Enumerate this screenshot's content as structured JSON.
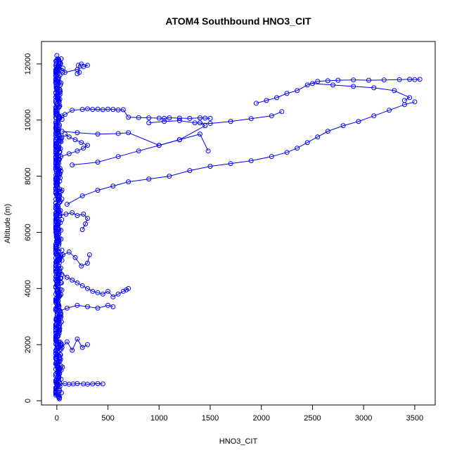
{
  "chart_data": {
    "type": "scatter",
    "title": "ATOM4 Southbound HNO3_CIT",
    "xlabel": "HNO3_CIT",
    "ylabel": "Altitude (m)",
    "xlim": [
      -150,
      3700
    ],
    "ylim": [
      -150,
      12800
    ],
    "x_ticks": [
      0,
      500,
      1000,
      1500,
      2000,
      2500,
      3000,
      3500
    ],
    "y_ticks": [
      0,
      2000,
      4000,
      6000,
      8000,
      10000,
      12000
    ],
    "grid": false,
    "legend": "none",
    "color": "#0000ff",
    "series": [
      {
        "x": [
          0,
          10,
          30,
          60,
          80,
          200,
          260,
          300,
          240,
          210,
          220,
          200
        ],
        "y": [
          12300,
          11900,
          11800,
          11850,
          11700,
          11800,
          11900,
          11950,
          12000,
          11950,
          11700,
          11650
        ]
      },
      {
        "x": [
          30,
          80,
          150,
          250,
          300,
          350,
          400,
          450,
          500,
          550,
          600,
          650,
          700,
          800,
          900,
          1000,
          1050,
          1100,
          1200,
          1300,
          1400,
          1450,
          1500
        ],
        "y": [
          10100,
          10200,
          10350,
          10380,
          10400,
          10380,
          10390,
          10370,
          10390,
          10380,
          10360,
          10370,
          10100,
          10090,
          10080,
          10070,
          10060,
          10080,
          10070,
          10060,
          10080,
          10070,
          10060
        ]
      },
      {
        "x": [
          50,
          200,
          400,
          600,
          700,
          1000,
          1200,
          1450,
          1400
        ],
        "y": [
          9600,
          9550,
          9500,
          9520,
          9550,
          9100,
          9300,
          9800,
          9900
        ]
      },
      {
        "x": [
          150,
          400,
          600,
          800,
          1000,
          1200,
          1400,
          1480
        ],
        "y": [
          8400,
          8500,
          8700,
          8900,
          9100,
          9300,
          9500,
          8900
        ]
      },
      {
        "x": [
          100,
          250,
          400,
          550,
          700,
          900,
          1100,
          1300,
          1500,
          1700,
          1900,
          2100,
          2250,
          2350,
          2450,
          2550,
          2650,
          2800,
          2950,
          3100,
          3250,
          3400,
          3500
        ],
        "y": [
          7000,
          7300,
          7500,
          7650,
          7800,
          7900,
          8000,
          8200,
          8350,
          8450,
          8550,
          8700,
          8850,
          9000,
          9200,
          9400,
          9600,
          9800,
          9950,
          10150,
          10350,
          10550,
          10650
        ]
      },
      {
        "x": [
          1950,
          2050,
          2150,
          2250,
          2350,
          2450,
          2550,
          2650,
          2750,
          2900,
          3050,
          3200,
          3350,
          3450,
          3500,
          3550
        ],
        "y": [
          10600,
          10700,
          10800,
          10950,
          11050,
          11250,
          11380,
          11400,
          11420,
          11430,
          11420,
          11430,
          11440,
          11450,
          11440,
          11450
        ]
      },
      {
        "x": [
          2500,
          2700,
          2900,
          3100,
          3300,
          3450,
          3400
        ],
        "y": [
          11300,
          11250,
          11200,
          11150,
          11050,
          10800,
          10700
        ]
      },
      {
        "x": [
          900,
          1050,
          1200,
          1350,
          1500,
          1700,
          1900,
          2100,
          2200
        ],
        "y": [
          9900,
          9950,
          9980,
          9900,
          9880,
          9950,
          10050,
          10150,
          10300
        ]
      },
      {
        "x": [
          30,
          100,
          150,
          200,
          250,
          300,
          350,
          400,
          450,
          500,
          550,
          600,
          650,
          700,
          680
        ],
        "y": [
          4600,
          4400,
          4300,
          4200,
          4100,
          4000,
          3900,
          3850,
          3800,
          3900,
          3700,
          3800,
          3900,
          4000,
          3950
        ]
      },
      {
        "x": [
          30,
          100,
          200,
          300,
          400,
          500,
          550
        ],
        "y": [
          3200,
          3300,
          3400,
          3350,
          3300,
          3400,
          3350
        ]
      },
      {
        "x": [
          30,
          80,
          120,
          160,
          200,
          260,
          300,
          350,
          400,
          450
        ],
        "y": [
          600,
          610,
          590,
          600,
          610,
          600,
          590,
          600,
          610,
          600
        ]
      },
      {
        "x": [
          10,
          50,
          100,
          150,
          200,
          250,
          300
        ],
        "y": [
          2000,
          1900,
          2100,
          1800,
          2200,
          1900,
          2000
        ]
      },
      {
        "x": [
          20,
          60,
          120,
          180,
          240,
          300,
          320
        ],
        "y": [
          5000,
          5200,
          5300,
          5100,
          4800,
          4900,
          5200
        ]
      },
      {
        "x": [
          30,
          90,
          150,
          200,
          260,
          300,
          280,
          250
        ],
        "y": [
          6600,
          6650,
          6700,
          6600,
          6650,
          6500,
          6300,
          6100
        ]
      },
      {
        "x": [
          40,
          120,
          200,
          260,
          300,
          240,
          180,
          120,
          80
        ],
        "y": [
          8700,
          8800,
          8900,
          9000,
          9100,
          9200,
          9300,
          9400,
          9500
        ]
      }
    ],
    "strip": {
      "x_center": 5,
      "x_spread": 40,
      "y_min": 100,
      "y_max": 12200
    }
  }
}
